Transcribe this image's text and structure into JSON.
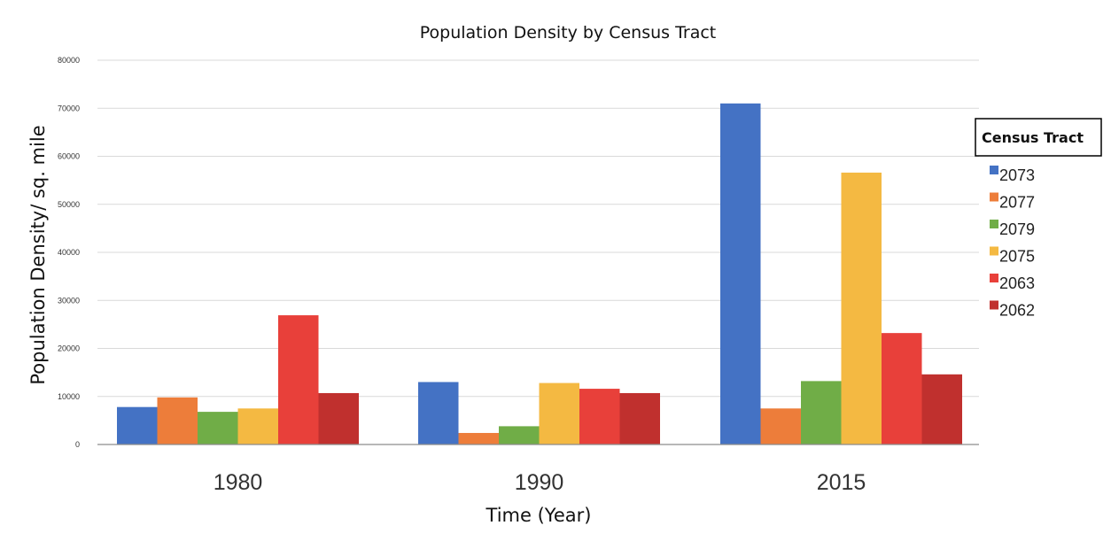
{
  "chart_data": {
    "type": "bar",
    "title": "Population Density by Census Tract",
    "xlabel": "Time (Year)",
    "ylabel": "Population Density/ sq. mile",
    "categories": [
      "1980",
      "1990",
      "2015"
    ],
    "ylim": [
      0,
      80000
    ],
    "yticks": [
      0,
      10000,
      20000,
      30000,
      40000,
      50000,
      60000,
      70000,
      80000
    ],
    "grid": true,
    "legend_title": "Census Tract",
    "legend_position": "right",
    "series": [
      {
        "name": "2073",
        "color": "#4472C4",
        "values": [
          7800,
          13000,
          71000
        ]
      },
      {
        "name": "2077",
        "color": "#ED7D3A",
        "values": [
          9800,
          2400,
          7500
        ]
      },
      {
        "name": "2079",
        "color": "#70AD47",
        "values": [
          6800,
          3800,
          13200
        ]
      },
      {
        "name": "2075",
        "color": "#F4B942",
        "values": [
          7500,
          12800,
          56600
        ]
      },
      {
        "name": "2063",
        "color": "#E8403A",
        "values": [
          26900,
          11600,
          23200
        ]
      },
      {
        "name": "2062",
        "color": "#C0302E",
        "values": [
          10700,
          10700,
          14600
        ]
      }
    ]
  }
}
